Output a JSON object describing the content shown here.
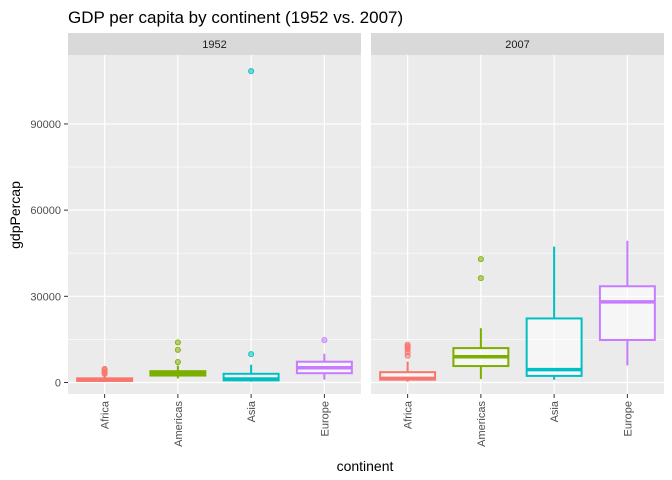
{
  "chart_data": {
    "type": "boxplot",
    "title": "GDP per capita by continent (1952 vs. 2007)",
    "xlabel": "continent",
    "ylabel": "gdpPercap",
    "ylim": [
      -4000,
      114000
    ],
    "yticks": [
      0,
      30000,
      60000,
      90000
    ],
    "ytick_labels": [
      "0",
      "30000",
      "60000",
      "90000"
    ],
    "categories": [
      "Africa",
      "Americas",
      "Asia",
      "Europe"
    ],
    "colors": {
      "Africa": "#F8766D",
      "Americas": "#7CAE00",
      "Asia": "#00BFC4",
      "Europe": "#C77CFF"
    },
    "panel_background": "#EBEBEB",
    "strip_background": "#D9D9D9",
    "grid": true,
    "panels": [
      {
        "label": "1952",
        "boxes": [
          {
            "category": "Africa",
            "q1": 534,
            "median": 987,
            "q3": 1455,
            "whisker_low": 299,
            "whisker_high": 2800,
            "outliers": [
              3000,
              3300,
              3600,
              4300,
              4725
            ]
          },
          {
            "category": "Americas",
            "q1": 2428,
            "median": 3048,
            "q3": 3940,
            "whisker_low": 1398,
            "whisker_high": 5911,
            "outliers": [
              7144,
              11367,
              13990
            ]
          },
          {
            "category": "Asia",
            "q1": 749,
            "median": 1207,
            "q3": 3035,
            "whisker_low": 331,
            "whisker_high": 6200,
            "outliers": [
              9867,
              108382
            ]
          },
          {
            "category": "Europe",
            "q1": 3241,
            "median": 5142,
            "q3": 7237,
            "whisker_low": 974,
            "whisker_high": 10000,
            "outliers": [
              14734
            ]
          }
        ]
      },
      {
        "label": "2007",
        "boxes": [
          {
            "category": "Africa",
            "q1": 1000,
            "median": 1452,
            "q3": 3600,
            "whisker_low": 277,
            "whisker_high": 7300,
            "outliers": [
              9300,
              10500,
              11600,
              12100,
              12600,
              13200
            ]
          },
          {
            "category": "Americas",
            "q1": 5730,
            "median": 8948,
            "q3": 11977,
            "whisker_low": 1202,
            "whisker_high": 18900,
            "outliers": [
              36319,
              42952
            ]
          },
          {
            "category": "Asia",
            "q1": 2300,
            "median": 4471,
            "q3": 22300,
            "whisker_low": 944,
            "whisker_high": 47307,
            "outliers": []
          },
          {
            "category": "Europe",
            "q1": 14800,
            "median": 28054,
            "q3": 33500,
            "whisker_low": 5937,
            "whisker_high": 49357,
            "outliers": []
          }
        ]
      }
    ]
  }
}
